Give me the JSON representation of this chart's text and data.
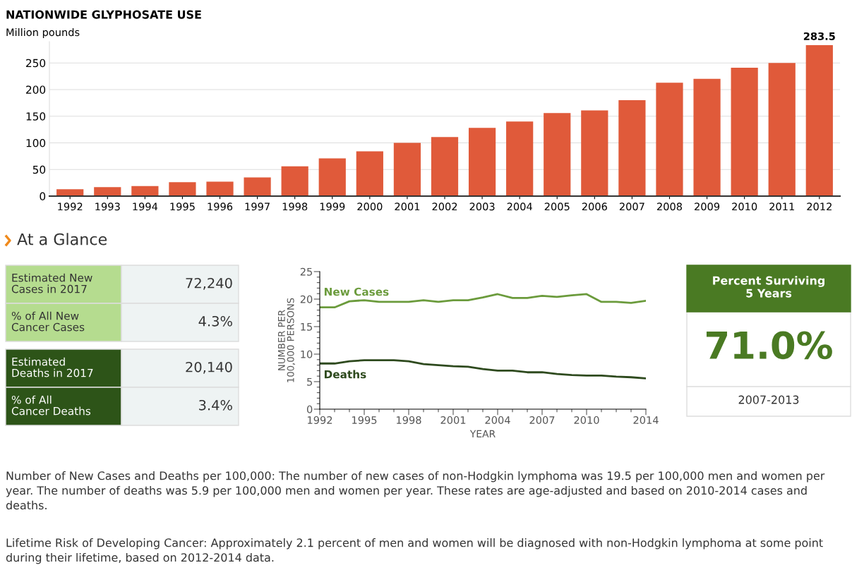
{
  "chart_data": [
    {
      "type": "bar",
      "title": "NATIONWIDE GLYPHOSATE USE",
      "subtitle": "Million pounds",
      "categories": [
        "1992",
        "1993",
        "1994",
        "1995",
        "1996",
        "1997",
        "1998",
        "1999",
        "2000",
        "2001",
        "2002",
        "2003",
        "2004",
        "2005",
        "2006",
        "2007",
        "2008",
        "2009",
        "2010",
        "2011",
        "2012"
      ],
      "values": [
        13,
        17,
        19,
        26,
        27,
        35,
        56,
        71,
        84,
        100,
        111,
        128,
        140,
        156,
        161,
        180,
        213,
        220,
        241,
        250,
        283.5
      ],
      "value_labels": [
        null,
        null,
        null,
        null,
        null,
        null,
        null,
        null,
        null,
        null,
        null,
        null,
        null,
        null,
        null,
        null,
        null,
        null,
        null,
        null,
        "283.5"
      ],
      "color": "#e05a3a",
      "ylim": [
        0,
        290
      ],
      "yticks": [
        0,
        50,
        100,
        150,
        200,
        250
      ],
      "grid": "y"
    },
    {
      "type": "other",
      "title": "At a Glance",
      "annotations": [
        "Estimated New\nCases in 2017",
        "72,240",
        "% of All New\nCancer Cases",
        "4.3%",
        "Estimated\nDeaths in 2017",
        "20,140",
        "% of All\nCancer Deaths",
        "3.4%"
      ],
      "colors": [
        "#b5dc8f",
        "#b5dc8f",
        "#2d5418",
        "#2d5418"
      ]
    },
    {
      "type": "line",
      "xlabel": "YEAR",
      "ylabel": "NUMBER PER\n100,000 PERSONS",
      "x": [
        1992,
        1993,
        1994,
        1995,
        1996,
        1997,
        1998,
        1999,
        2000,
        2001,
        2002,
        2003,
        2004,
        2005,
        2006,
        2007,
        2008,
        2009,
        2010,
        2011,
        2012,
        2013,
        2014
      ],
      "series": [
        {
          "name": "New Cases",
          "color": "#6b9b3c",
          "values": [
            18.5,
            18.5,
            19.6,
            19.8,
            19.5,
            19.5,
            19.5,
            19.8,
            19.5,
            19.8,
            19.8,
            20.3,
            20.9,
            20.2,
            20.2,
            20.6,
            20.4,
            20.7,
            20.9,
            19.5,
            19.5,
            19.3,
            19.7
          ]
        },
        {
          "name": "Deaths",
          "color": "#2e4a1e",
          "values": [
            8.3,
            8.3,
            8.7,
            8.9,
            8.9,
            8.9,
            8.7,
            8.2,
            8.0,
            7.8,
            7.7,
            7.3,
            7.0,
            7.0,
            6.7,
            6.7,
            6.4,
            6.2,
            6.1,
            6.1,
            5.9,
            5.8,
            5.6
          ]
        }
      ],
      "xlim": [
        1992,
        2014
      ],
      "xticks": [
        1992,
        {
          "value": 1993,
          "label": null
        },
        {
          "value": 1994,
          "label": null
        },
        1995,
        {
          "value": 1996,
          "label": null
        },
        {
          "value": 1997,
          "label": null
        },
        1998,
        {
          "value": 1999,
          "label": null
        },
        {
          "value": 2000,
          "label": null
        },
        2001,
        {
          "value": 2002,
          "label": null
        },
        {
          "value": 2003,
          "label": null
        },
        2004,
        {
          "value": 2005,
          "label": null
        },
        {
          "value": 2006,
          "label": null
        },
        2007,
        {
          "value": 2008,
          "label": null
        },
        {
          "value": 2009,
          "label": null
        },
        2010,
        {
          "value": 2011,
          "label": null
        },
        {
          "value": 2012,
          "label": null
        },
        {
          "value": 2013,
          "label": null
        },
        2014
      ],
      "ylim": [
        0,
        25
      ],
      "yticks": [
        0,
        {
          "value": 1,
          "label": null
        },
        {
          "value": 2,
          "label": null
        },
        {
          "value": 3,
          "label": null
        },
        {
          "value": 4,
          "label": null
        },
        5,
        {
          "value": 6,
          "label": null
        },
        {
          "value": 7,
          "label": null
        },
        {
          "value": 8,
          "label": null
        },
        {
          "value": 9,
          "label": null
        },
        10,
        {
          "value": 11,
          "label": null
        },
        {
          "value": 12,
          "label": null
        },
        {
          "value": 13,
          "label": null
        },
        {
          "value": 14,
          "label": null
        },
        15,
        {
          "value": 16,
          "label": null
        },
        {
          "value": 17,
          "label": null
        },
        {
          "value": 18,
          "label": null
        },
        {
          "value": 19,
          "label": null
        },
        20,
        {
          "value": 21,
          "label": null
        },
        {
          "value": 22,
          "label": null
        },
        {
          "value": 23,
          "label": null
        },
        {
          "value": 24,
          "label": null
        },
        25
      ],
      "grid": false,
      "marker": "none",
      "line_style": "solid"
    },
    {
      "type": "other",
      "annotations": [
        "Percent Surviving\n5 Years",
        "71.0%",
        "2007-2013"
      ],
      "color": "#4a7a23"
    },
    {
      "type": "other",
      "annotations": [
        "Number of New Cases and Deaths per 100,000: The number of new cases of non-Hodgkin lymphoma was 19.5 per 100,000 men and women per year. The number of deaths was 5.9 per 100,000 men and women per year. These rates are age-adjusted and based on 2010-2014 cases and deaths.",
        "Lifetime Risk of Developing Cancer: Approximately 2.1 percent of men and women will be diagnosed with non-Hodgkin lymphoma at some point during their lifetime, based on 2012-2014 data."
      ]
    }
  ]
}
